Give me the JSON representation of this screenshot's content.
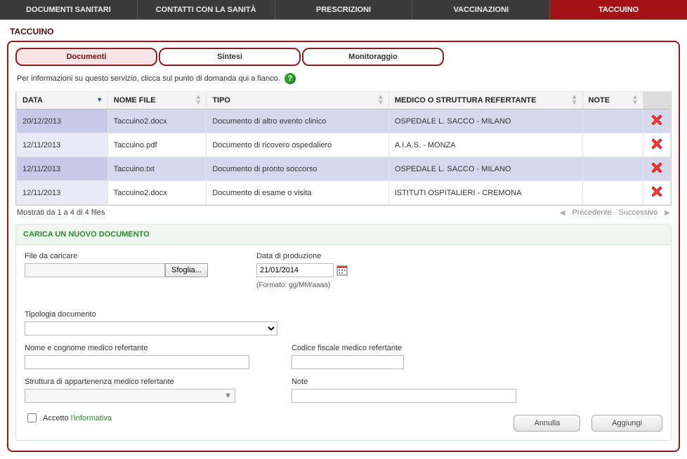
{
  "topnav": {
    "items": [
      "DOCUMENTI SANITARI",
      "CONTATTI CON LA SANITÀ",
      "PRESCRIZIONI",
      "VACCINAZIONI",
      "TACCUINO"
    ],
    "active_index": 4
  },
  "page_title": "TACCUINO",
  "tabs": {
    "items": [
      "Documenti",
      "Sintesi",
      "Monitoraggio"
    ],
    "active_index": 0
  },
  "info_text": "Per informazioni su questo servizio, clicca sul punto di domanda qui a fianco.",
  "help_glyph": "?",
  "table": {
    "columns": [
      "DATA",
      "NOME FILE",
      "TIPO",
      "MEDICO O STRUTTURA REFERTANTE",
      "NOTE",
      ""
    ],
    "sorted_col": 0,
    "sort_dir": "desc",
    "rows": [
      {
        "data": "20/12/2013",
        "nome": "Taccuino2.docx",
        "tipo": "Documento di altro evento clinico",
        "medico": "OSPEDALE L. SACCO - MILANO",
        "note": ""
      },
      {
        "data": "12/11/2013",
        "nome": "Taccuino.pdf",
        "tipo": "Documento di ricovero ospedaliero",
        "medico": "A.I.A.S. - MONZA",
        "note": ""
      },
      {
        "data": "12/11/2013",
        "nome": "Taccuino.txt",
        "tipo": "Documento di pronto soccorso",
        "medico": "OSPEDALE L. SACCO - MILANO",
        "note": ""
      },
      {
        "data": "12/11/2013",
        "nome": "Taccuino2.docx",
        "tipo": "Documento di esame o visita",
        "medico": "ISTITUTI OSPITALIERI - CREMONA",
        "note": ""
      }
    ],
    "footer_text": "Mostrati da 1 a 4 di 4 files",
    "pager_prev": "Precedente",
    "pager_next": "Successivo"
  },
  "upload": {
    "header": "CARICA UN NUOVO DOCUMENTO",
    "file_label": "File da caricare",
    "sfoglia_label": "Sfoglia...",
    "date_label": "Data di produzione",
    "date_value": "21/01/2014",
    "date_format_hint": "(Formato: gg/MM/aaaa)",
    "tipologia_label": "Tipologia documento",
    "nome_medico_label": "Nome e cognome medico refertante",
    "cf_medico_label": "Codice fiscale medico refertante",
    "struttura_label": "Struttura di appartenenza medico refertante",
    "note_label": "Note",
    "accetto_prefix": "Accetto ",
    "accetto_link": "l'informativa",
    "annulla_label": "Annulla",
    "aggiungi_label": "Aggiungi"
  },
  "colors": {
    "brand_red": "#8a1c1f",
    "nav_bg": "#3a3a3a",
    "active_nav": "#a31216",
    "row_alt": "#d6d8ef",
    "upload_header": "#2a8a2a"
  }
}
